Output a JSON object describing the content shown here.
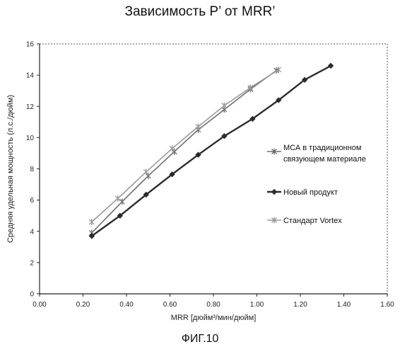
{
  "chart_data": {
    "type": "line",
    "title": "Зависимость P’ от MRR’",
    "xlabel": "MRR [дюйм³/мин/дюйм]",
    "ylabel": "Средняя удельная мощность (л.с./дюйм)",
    "xlim": [
      0,
      1.6
    ],
    "ylim": [
      0,
      16
    ],
    "xticks": [
      "0.00",
      "0.20",
      "0.40",
      "0.60",
      "0.80",
      "1.00",
      "1.20",
      "1.40",
      "1.60"
    ],
    "yticks": [
      "0",
      "2",
      "4",
      "6",
      "8",
      "10",
      "12",
      "14",
      "16"
    ],
    "grid": false,
    "legend_position": "right",
    "series": [
      {
        "name": "МСА в традиционном связующем материале",
        "color": "#6e6e6e",
        "marker": "star",
        "points": [
          [
            0.24,
            3.9
          ],
          [
            0.38,
            5.9
          ],
          [
            0.5,
            7.55
          ],
          [
            0.62,
            9.1
          ],
          [
            0.73,
            10.5
          ],
          [
            0.85,
            11.8
          ],
          [
            0.97,
            13.1
          ],
          [
            1.09,
            14.3
          ]
        ]
      },
      {
        "name": "Новый продукт",
        "color": "#2b2b2b",
        "marker": "diamond",
        "points": [
          [
            0.24,
            3.7
          ],
          [
            0.37,
            5.0
          ],
          [
            0.49,
            6.35
          ],
          [
            0.61,
            7.65
          ],
          [
            0.73,
            8.9
          ],
          [
            0.85,
            10.1
          ],
          [
            0.98,
            11.2
          ],
          [
            1.1,
            12.4
          ],
          [
            1.22,
            13.7
          ],
          [
            1.34,
            14.6
          ]
        ]
      },
      {
        "name": "Стандарт Vortex",
        "color": "#9a9a9a",
        "marker": "star",
        "points": [
          [
            0.24,
            4.6
          ],
          [
            0.36,
            6.1
          ],
          [
            0.49,
            7.8
          ],
          [
            0.61,
            9.3
          ],
          [
            0.73,
            10.7
          ],
          [
            0.85,
            12.05
          ],
          [
            0.97,
            13.2
          ],
          [
            1.1,
            14.35
          ]
        ]
      }
    ]
  },
  "figure": {
    "caption": "ФИГ.10"
  }
}
